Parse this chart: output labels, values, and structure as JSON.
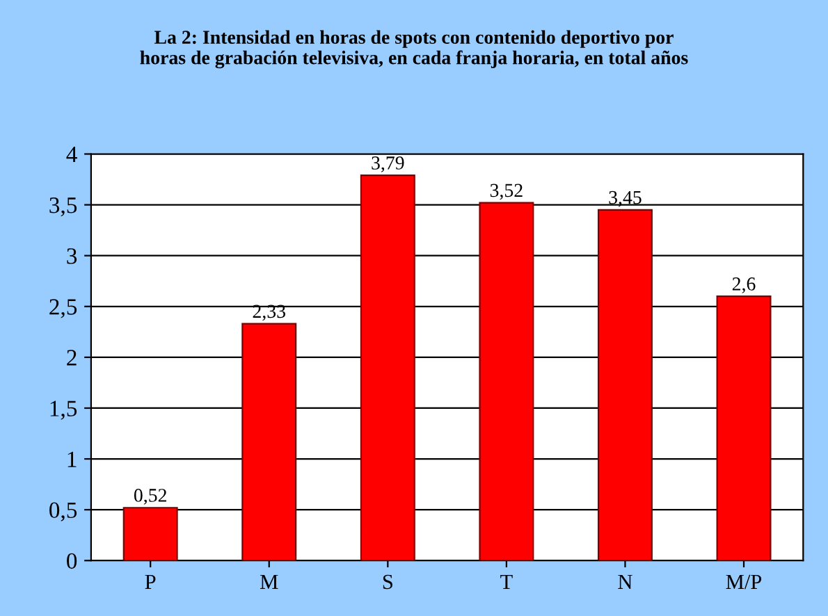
{
  "chart_data": {
    "type": "bar",
    "title": "La 2: Intensidad en horas de spots con contenido deportivo por\nhoras de grabación televisiva, en cada franja horaria, en total años",
    "categories": [
      "P",
      "M",
      "S",
      "T",
      "N",
      "M/P"
    ],
    "values": [
      0.52,
      2.33,
      3.79,
      3.52,
      3.45,
      2.6
    ],
    "value_labels": [
      "0,52",
      "2,33",
      "3,79",
      "3,52",
      "3,45",
      "2,6"
    ],
    "color": "#ff0000",
    "ylim": [
      0,
      4
    ],
    "yticks": [
      0,
      {
        "value": 0.5,
        "label": "0,5"
      },
      1,
      {
        "value": 1.5,
        "label": "1,5"
      },
      2,
      {
        "value": 2.5,
        "label": "2,5"
      },
      3,
      {
        "value": 3.5,
        "label": "3,5"
      },
      4
    ],
    "grid": "y"
  }
}
